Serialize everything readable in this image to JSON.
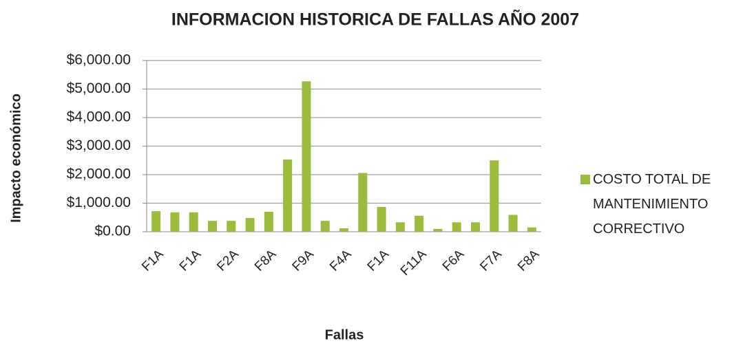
{
  "chart_data": {
    "type": "bar",
    "title": "INFORMACION HISTORICA DE FALLAS AÑO 2007",
    "x_label": "Fallas",
    "y_label": "Impacto económico",
    "categories": [
      "F1A",
      null,
      "F1A",
      null,
      "F2A",
      null,
      "F8A",
      null,
      "F9A",
      null,
      "F4A",
      null,
      "F1A",
      null,
      "F11A",
      null,
      "F6A",
      null,
      "F7A",
      null,
      "F8A"
    ],
    "series": [
      {
        "name": "COSTO TOTAL DE MANTENIMIENTO CORRECTIVO",
        "color": "#9dbb3d",
        "values": [
          720,
          680,
          680,
          380,
          380,
          480,
          700,
          2530,
          5270,
          380,
          120,
          2060,
          870,
          330,
          560,
          100,
          330,
          330,
          2500,
          590,
          150
        ]
      }
    ],
    "ylim": [
      0,
      6000
    ],
    "yticks": [
      {
        "value": 0,
        "label": "$0.00"
      },
      {
        "value": 1000,
        "label": "$1,000.00"
      },
      {
        "value": 2000,
        "label": "$2,000.00"
      },
      {
        "value": 3000,
        "label": "$3,000.00"
      },
      {
        "value": 4000,
        "label": "$4,000.00"
      },
      {
        "value": 5000,
        "label": "$5,000.00"
      },
      {
        "value": 6000,
        "label": "$6,000.00"
      }
    ],
    "grid": true,
    "legend": "right"
  }
}
